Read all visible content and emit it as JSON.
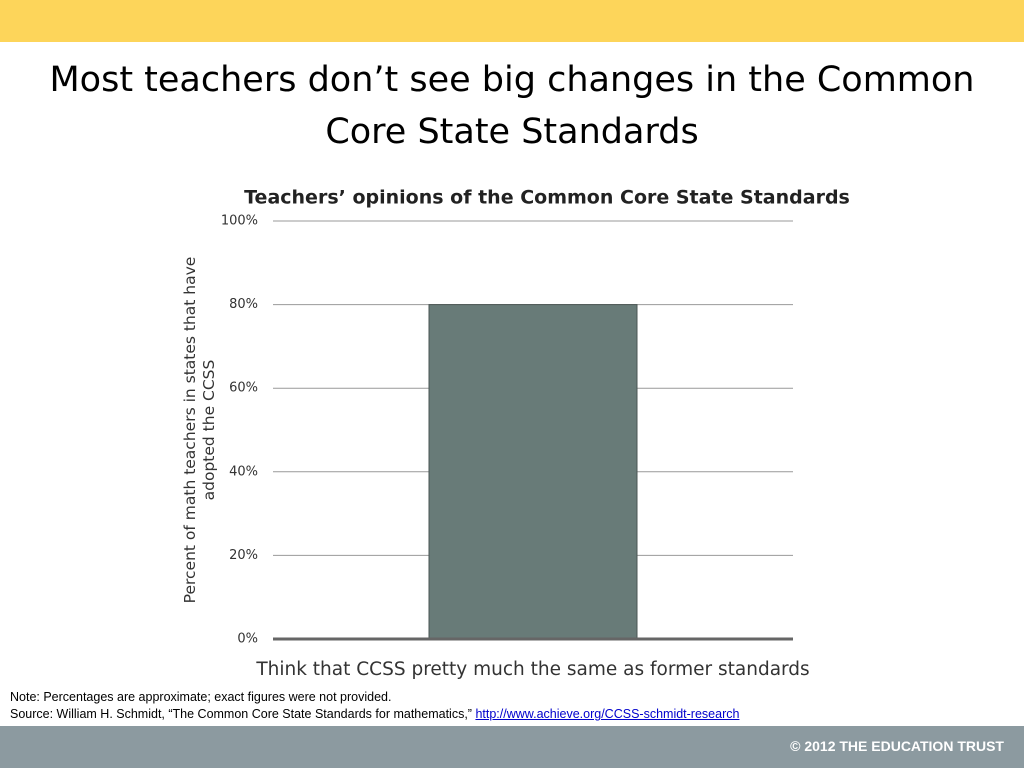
{
  "slide_title": "Most teachers don’t see big changes in the Common Core State Standards",
  "chart_data": {
    "type": "bar",
    "title": "Teachers’ opinions of the Common Core State Standards",
    "ylabel": "Percent of math teachers in states that have adopted the CCSS",
    "categories": [
      "Think that CCSS pretty much the same as former standards"
    ],
    "values": [
      80
    ],
    "color": "#687b78",
    "ylim": [
      0,
      100
    ],
    "yticks": [
      {
        "value": 0,
        "label": "0%"
      },
      {
        "value": 20,
        "label": "20%"
      },
      {
        "value": 40,
        "label": "40%"
      },
      {
        "value": 60,
        "label": "60%"
      },
      {
        "value": 80,
        "label": "80%"
      },
      {
        "value": 100,
        "label": "100%"
      }
    ],
    "grid": true
  },
  "note": "Note: Percentages are approximate; exact figures were not provided.",
  "source": {
    "text": "Source: William H. Schmidt, “The Common Core State Standards for mathematics,”",
    "link": "http://www.achieve.org/CCSS-schmidt-research"
  },
  "footer": "© 2012 THE EDUCATION TRUST"
}
